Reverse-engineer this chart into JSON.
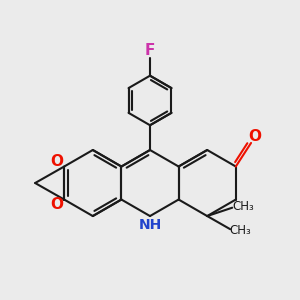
{
  "bg_color": "#ebebeb",
  "bond_color": "#1a1a1a",
  "bond_width": 1.5,
  "O_color": "#ee1100",
  "N_color": "#2244cc",
  "F_color": "#cc33aa",
  "figsize": [
    3.0,
    3.0
  ],
  "dpi": 100,
  "xlim": [
    -4.5,
    4.5
  ],
  "ylim": [
    -3.5,
    5.5
  ]
}
